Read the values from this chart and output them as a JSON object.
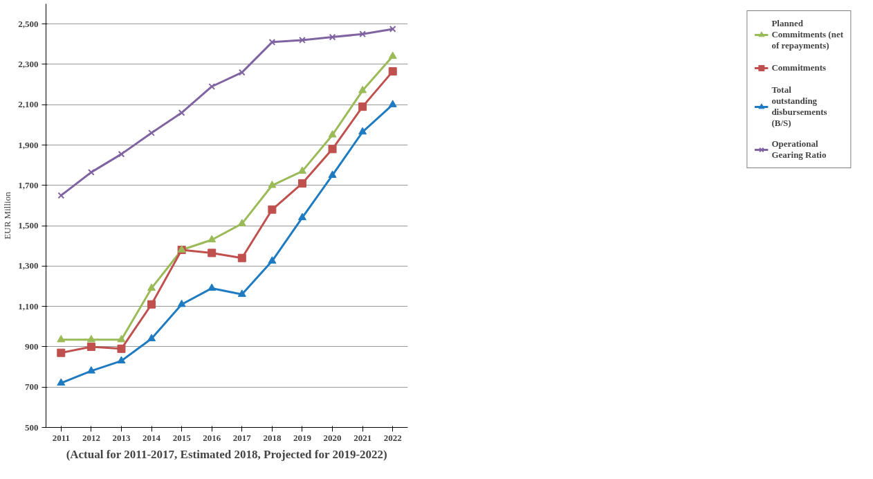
{
  "chart_data": {
    "type": "line",
    "ylabel": "EUR Million",
    "annotations": [
      "(Actual for 2011-2017, Estimated 2018, Projected for 2019-2022)"
    ],
    "categories": [
      "2011",
      "2012",
      "2013",
      "2014",
      "2015",
      "2016",
      "2017",
      "2018",
      "2019",
      "2020",
      "2021",
      "2022"
    ],
    "ylim": [
      500,
      2600
    ],
    "yticks": [
      {
        "value": 500,
        "label": "500"
      },
      {
        "value": 700,
        "label": "700"
      },
      {
        "value": 900,
        "label": "900"
      },
      {
        "value": 1100,
        "label": "1,100"
      },
      {
        "value": 1300,
        "label": "1,300"
      },
      {
        "value": 1500,
        "label": "1,500"
      },
      {
        "value": 1700,
        "label": "1,700"
      },
      {
        "value": 1900,
        "label": "1,900"
      },
      {
        "value": 2100,
        "label": "2,100"
      },
      {
        "value": 2300,
        "label": "2,300"
      },
      {
        "value": 2500,
        "label": "2,500"
      }
    ],
    "grid": "y",
    "legend": "right",
    "series": [
      {
        "name": "Planned Commitments (net of repayments)",
        "color": "#9bbb59",
        "marker": "triangle",
        "values": [
          935,
          935,
          935,
          1190,
          1380,
          1430,
          1510,
          1700,
          1770,
          1950,
          2170,
          2340
        ]
      },
      {
        "name": "Commitments",
        "color": "#c0504d",
        "marker": "square",
        "values": [
          870,
          900,
          890,
          1110,
          1380,
          1365,
          1340,
          1580,
          1710,
          1880,
          2090,
          2265
        ]
      },
      {
        "name": "Total outstanding disbursements (B/S)",
        "color": "#1f7bc1",
        "marker": "triangle",
        "values": [
          720,
          780,
          830,
          940,
          1110,
          1190,
          1160,
          1325,
          1540,
          1750,
          1965,
          2100
        ]
      },
      {
        "name": "Operational Gearing Ratio",
        "color": "#8064a2",
        "marker": "cross",
        "values": [
          1650,
          1765,
          1855,
          1960,
          2060,
          2190,
          2260,
          2410,
          2420,
          2435,
          2450,
          2475
        ]
      }
    ]
  }
}
